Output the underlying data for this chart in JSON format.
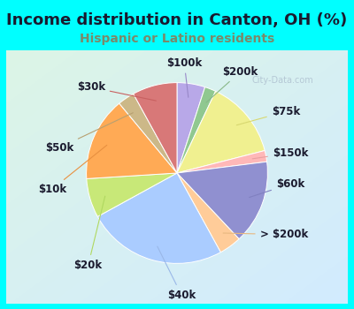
{
  "title": "Income distribution in Canton, OH (%)",
  "subtitle": "Hispanic or Latino residents",
  "title_color": "#1a1a2e",
  "subtitle_color": "#7a8a6a",
  "background_color": "#00ffff",
  "watermark": "City-Data.com",
  "labels": [
    "$100k",
    "$200k",
    "$75k",
    "$150k",
    "$60k",
    "> $200k",
    "$40k",
    "$20k",
    "$10k",
    "$50k",
    "$30k"
  ],
  "values": [
    5.0,
    2.0,
    14.0,
    2.0,
    15.0,
    4.0,
    25.0,
    7.0,
    15.0,
    3.0,
    8.0
  ],
  "colors": [
    "#b8a8e8",
    "#90c890",
    "#f0f090",
    "#ffb8b8",
    "#9090d0",
    "#ffcc99",
    "#aaccff",
    "#c8e878",
    "#ffaa55",
    "#ccb888",
    "#d87878"
  ],
  "startangle": 90,
  "label_fontsize": 8.5,
  "title_fontsize": 13,
  "subtitle_fontsize": 10,
  "label_data": [
    [
      "$100k",
      0.08,
      1.22
    ],
    [
      "$200k",
      0.7,
      1.12
    ],
    [
      "$75k",
      1.2,
      0.68
    ],
    [
      "$150k",
      1.25,
      0.22
    ],
    [
      "$60k",
      1.25,
      -0.12
    ],
    [
      "> $200k",
      1.18,
      -0.68
    ],
    [
      "$40k",
      0.05,
      -1.35
    ],
    [
      "$20k",
      -0.98,
      -1.02
    ],
    [
      "$10k",
      -1.38,
      -0.18
    ],
    [
      "$50k",
      -1.3,
      0.28
    ],
    [
      "$30k",
      -0.95,
      0.95
    ]
  ],
  "line_colors": [
    "#9888c8",
    "#88b888",
    "#d8d870",
    "#e8a0a0",
    "#8080c0",
    "#e8b880",
    "#9ab8e8",
    "#b0d860",
    "#e89040",
    "#b8a070",
    "#c86060"
  ]
}
